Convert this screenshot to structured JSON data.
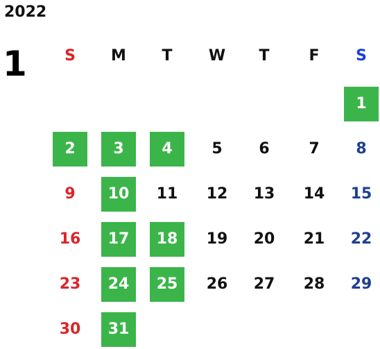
{
  "calendar": {
    "year": "2022",
    "month": "1",
    "weekdays": [
      "S",
      "M",
      "T",
      "W",
      "T",
      "F",
      "S"
    ],
    "colors": {
      "holiday_bg": "#3bb54a",
      "sunday": "#d9262b",
      "saturday": "#1f3f8f",
      "weekday": "#111111"
    },
    "weeks": [
      [
        null,
        null,
        null,
        null,
        null,
        null,
        {
          "day": "1",
          "highlighted": true
        }
      ],
      [
        {
          "day": "2",
          "highlighted": true
        },
        {
          "day": "3",
          "highlighted": true
        },
        {
          "day": "4",
          "highlighted": true
        },
        {
          "day": "5",
          "highlighted": false
        },
        {
          "day": "6",
          "highlighted": false
        },
        {
          "day": "7",
          "highlighted": false
        },
        {
          "day": "8",
          "highlighted": false
        }
      ],
      [
        {
          "day": "9",
          "highlighted": false
        },
        {
          "day": "10",
          "highlighted": true
        },
        {
          "day": "11",
          "highlighted": false
        },
        {
          "day": "12",
          "highlighted": false
        },
        {
          "day": "13",
          "highlighted": false
        },
        {
          "day": "14",
          "highlighted": false
        },
        {
          "day": "15",
          "highlighted": false
        }
      ],
      [
        {
          "day": "16",
          "highlighted": false
        },
        {
          "day": "17",
          "highlighted": true
        },
        {
          "day": "18",
          "highlighted": true
        },
        {
          "day": "19",
          "highlighted": false
        },
        {
          "day": "20",
          "highlighted": false
        },
        {
          "day": "21",
          "highlighted": false
        },
        {
          "day": "22",
          "highlighted": false
        }
      ],
      [
        {
          "day": "23",
          "highlighted": false
        },
        {
          "day": "24",
          "highlighted": true
        },
        {
          "day": "25",
          "highlighted": true
        },
        {
          "day": "26",
          "highlighted": false
        },
        {
          "day": "27",
          "highlighted": false
        },
        {
          "day": "28",
          "highlighted": false
        },
        {
          "day": "29",
          "highlighted": false
        }
      ],
      [
        {
          "day": "30",
          "highlighted": false
        },
        {
          "day": "31",
          "highlighted": true
        },
        null,
        null,
        null,
        null,
        null
      ]
    ]
  }
}
